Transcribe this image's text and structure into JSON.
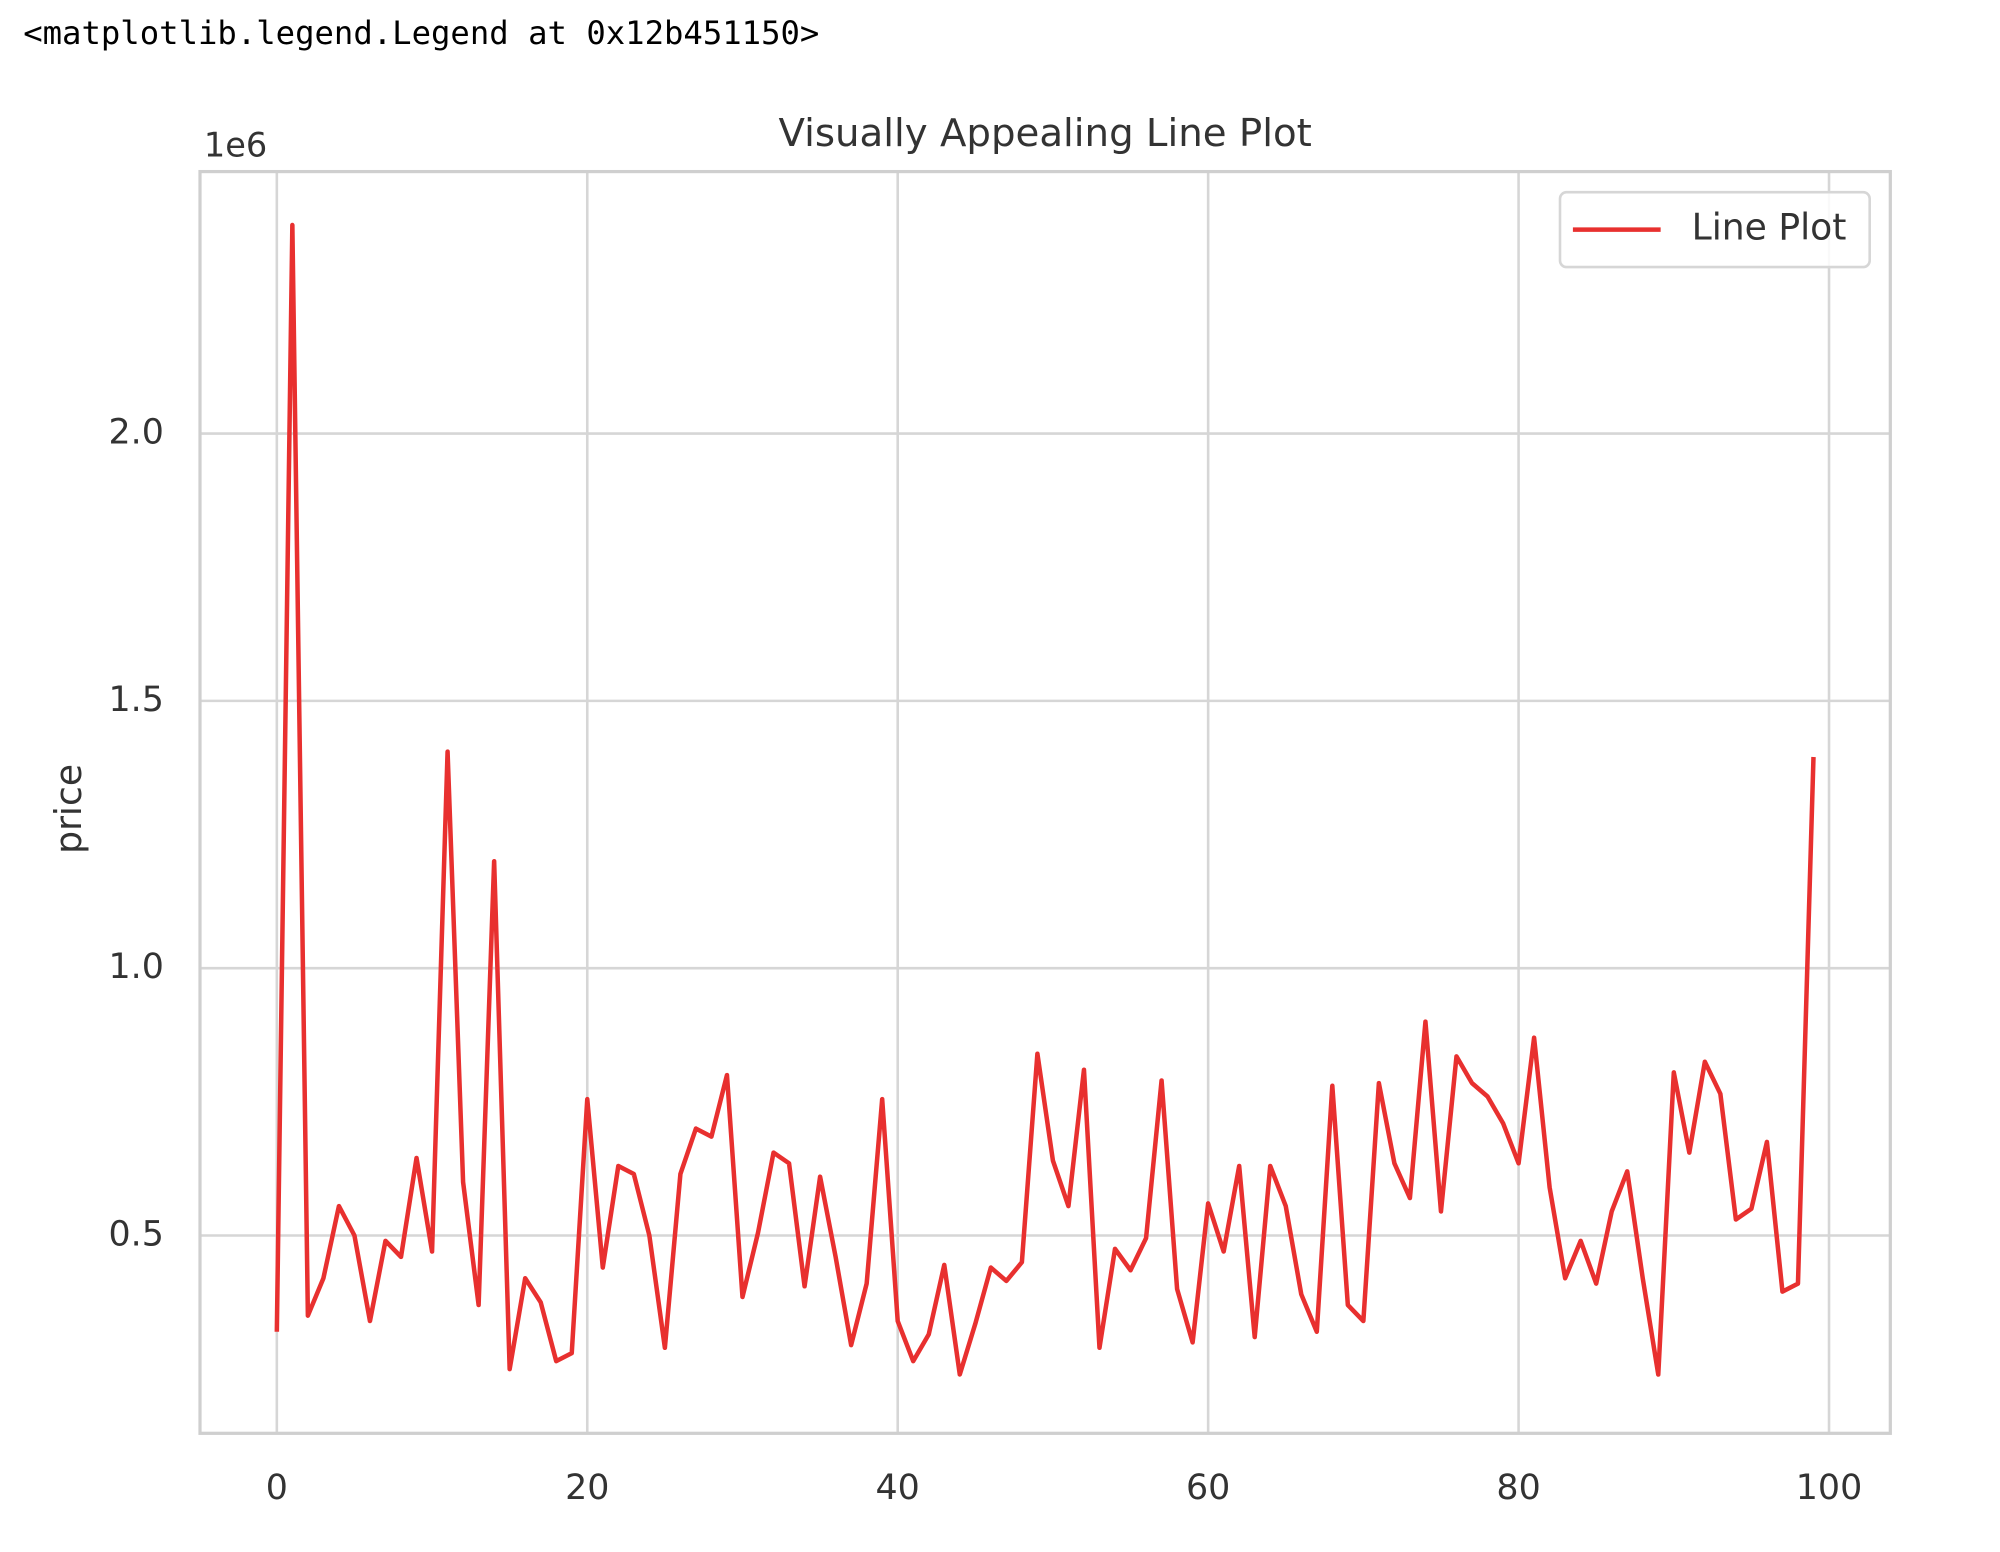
{
  "header": {
    "text": "<matplotlib.legend.Legend at 0x12b451150>"
  },
  "chart_data": {
    "type": "line",
    "title": "Visually Appealing Line Plot",
    "y_label": "price",
    "y_offset_text": "1e6",
    "x": [
      0,
      1,
      2,
      3,
      4,
      5,
      6,
      7,
      8,
      9,
      10,
      11,
      12,
      13,
      14,
      15,
      16,
      17,
      18,
      19,
      20,
      21,
      22,
      23,
      24,
      25,
      26,
      27,
      28,
      29,
      30,
      31,
      32,
      33,
      34,
      35,
      36,
      37,
      38,
      39,
      40,
      41,
      42,
      43,
      44,
      45,
      46,
      47,
      48,
      49,
      50,
      51,
      52,
      53,
      54,
      55,
      56,
      57,
      58,
      59,
      60,
      61,
      62,
      63,
      64,
      65,
      66,
      67,
      68,
      69,
      70,
      71,
      72,
      73,
      74,
      75,
      76,
      77,
      78,
      79,
      80,
      81,
      82,
      83,
      84,
      85,
      86,
      87,
      88,
      89,
      90,
      91,
      92,
      93,
      94,
      95,
      96,
      97,
      98,
      99
    ],
    "series": [
      {
        "name": "Line Plot",
        "color": "#e8302f",
        "values": [
          0.32,
          2.39,
          0.35,
          0.42,
          0.555,
          0.5,
          0.34,
          0.49,
          0.46,
          0.645,
          0.47,
          1.405,
          0.6,
          0.37,
          1.2,
          0.25,
          0.42,
          0.375,
          0.265,
          0.28,
          0.755,
          0.44,
          0.63,
          0.615,
          0.5,
          0.29,
          0.615,
          0.7,
          0.685,
          0.8,
          0.385,
          0.505,
          0.655,
          0.635,
          0.405,
          0.61,
          0.46,
          0.295,
          0.41,
          0.755,
          0.34,
          0.265,
          0.315,
          0.445,
          0.24,
          0.335,
          0.44,
          0.415,
          0.45,
          0.84,
          0.64,
          0.555,
          0.81,
          0.29,
          0.475,
          0.435,
          0.495,
          0.79,
          0.4,
          0.3,
          0.56,
          0.47,
          0.63,
          0.31,
          0.63,
          0.555,
          0.39,
          0.32,
          0.78,
          0.37,
          0.34,
          0.785,
          0.635,
          0.57,
          0.9,
          0.545,
          0.835,
          0.785,
          0.76,
          0.71,
          0.635,
          0.87,
          0.59,
          0.42,
          0.49,
          0.41,
          0.545,
          0.62,
          0.42,
          0.24,
          0.805,
          0.655,
          0.825,
          0.765,
          0.53,
          0.55,
          0.675,
          0.395,
          0.41,
          1.395
        ]
      }
    ],
    "xlim": [
      -4.95,
      103.95
    ],
    "ylim": [
      0.13,
      2.49
    ],
    "xticks": [
      0,
      20,
      40,
      60,
      80,
      100
    ],
    "yticks": [
      0.5,
      {
        "value": 1,
        "label": "1.0"
      },
      1.5,
      {
        "value": 2,
        "label": "2.0"
      }
    ],
    "grid": true,
    "legend": "upper right"
  }
}
